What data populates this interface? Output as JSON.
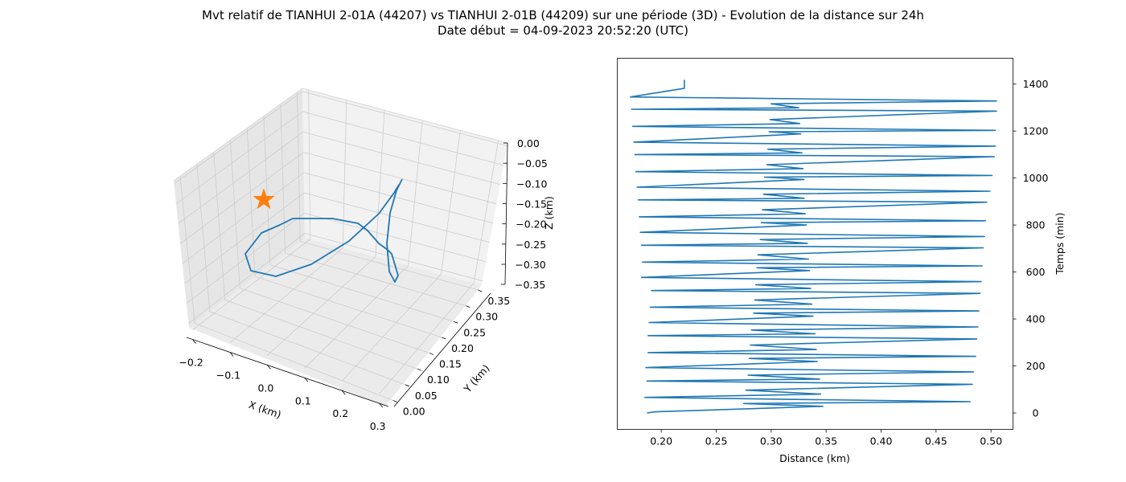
{
  "title": {
    "line1": "Mvt relatif de TIANHUI 2-01A (44207) vs TIANHUI 2-01B (44209) sur une période (3D) - Evolution de la distance sur 24h",
    "line2": "Date début = 04-09-2023 20:52:20 (UTC)"
  },
  "colors": {
    "series": "#1f77b4",
    "star": "#ff7f0e",
    "pane": "#f2f2f2",
    "grid": "#cccccc"
  },
  "chart_data": [
    {
      "type": "line3d",
      "xlabel": "X (km)",
      "ylabel": "Y (km)",
      "zlabel": "Z (km)",
      "x_ticks": [
        "−0.2",
        "−0.1",
        "0.0",
        "0.1",
        "0.2",
        "0.3"
      ],
      "y_ticks": [
        "0.00",
        "0.05",
        "0.10",
        "0.15",
        "0.20",
        "0.25",
        "0.30",
        "0.35"
      ],
      "z_ticks": [
        "0.00",
        "−0.05",
        "−0.10",
        "−0.15",
        "−0.20",
        "−0.25",
        "−0.30",
        "−0.35"
      ],
      "marker": {
        "symbol": "star",
        "label": "origin"
      },
      "grid": true
    },
    {
      "type": "line",
      "xlabel": "Distance (km)",
      "ylabel": "Temps (min)",
      "xlim": [
        0.16,
        0.52
      ],
      "ylim": [
        -70,
        1510
      ],
      "x_ticks": [
        "0.20",
        "0.25",
        "0.30",
        "0.35",
        "0.40",
        "0.45",
        "0.50"
      ],
      "y_ticks": [
        "0",
        "200",
        "400",
        "600",
        "800",
        "1000",
        "1200",
        "1400"
      ],
      "y_tick_values": [
        0,
        200,
        400,
        600,
        800,
        1000,
        1200,
        1400
      ],
      "x_tick_values": [
        0.2,
        0.25,
        0.3,
        0.35,
        0.4,
        0.45,
        0.5
      ],
      "grid": false,
      "series": [
        {
          "t": [
            0,
            5,
            28,
            40,
            48,
            66,
            80,
            97,
            122,
            136,
            144,
            161,
            175,
            193,
            219,
            232,
            241,
            257,
            270,
            289,
            315,
            329,
            337,
            353,
            366,
            385,
            412,
            425,
            434,
            450,
            463,
            481,
            509,
            521,
            530,
            546,
            559,
            577,
            606,
            618,
            626,
            642,
            655,
            673,
            703,
            714,
            722,
            738,
            751,
            769,
            800,
            810,
            818,
            835,
            848,
            865,
            897,
            907,
            914,
            931,
            944,
            961,
            994,
            1004,
            1011,
            1027,
            1040,
            1057,
            1091,
            1100,
            1107,
            1123,
            1136,
            1153,
            1188,
            1197,
            1203,
            1220,
            1232,
            1249,
            1285,
            1293,
            1299,
            1316,
            1328,
            1345,
            1382,
            1390,
            1395,
            1412,
            1418
          ],
          "d": [
            0.187,
            0.195,
            0.347,
            0.275,
            0.481,
            0.185,
            0.345,
            0.277,
            0.483,
            0.187,
            0.344,
            0.279,
            0.484,
            0.186,
            0.342,
            0.28,
            0.486,
            0.188,
            0.341,
            0.281,
            0.487,
            0.188,
            0.34,
            0.282,
            0.488,
            0.189,
            0.338,
            0.284,
            0.489,
            0.19,
            0.337,
            0.285,
            0.49,
            0.191,
            0.336,
            0.286,
            0.491,
            0.182,
            0.335,
            0.287,
            0.492,
            0.183,
            0.334,
            0.288,
            0.493,
            0.182,
            0.333,
            0.29,
            0.494,
            0.181,
            0.332,
            0.291,
            0.495,
            0.18,
            0.331,
            0.292,
            0.496,
            0.179,
            0.33,
            0.293,
            0.499,
            0.178,
            0.33,
            0.294,
            0.501,
            0.177,
            0.329,
            0.296,
            0.503,
            0.176,
            0.328,
            0.297,
            0.504,
            0.175,
            0.327,
            0.298,
            0.504,
            0.174,
            0.326,
            0.299,
            0.505,
            0.173,
            0.325,
            0.3,
            0.505,
            0.172,
            0.221,
            0.221,
            0.221,
            0.221,
            0.221
          ]
        }
      ]
    }
  ]
}
